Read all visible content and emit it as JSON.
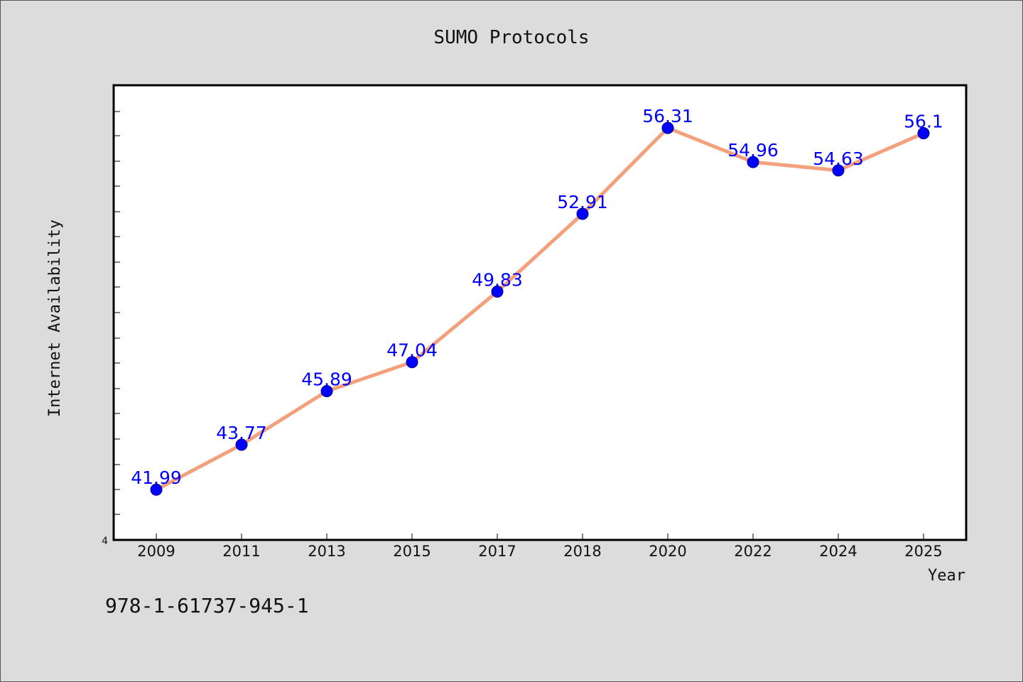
{
  "chart_data": {
    "type": "line",
    "title": "SUMO Protocols",
    "xlabel": "Year",
    "ylabel": "Internet Availability",
    "categories": [
      "2009",
      "2011",
      "2013",
      "2015",
      "2017",
      "2018",
      "2020",
      "2022",
      "2024",
      "2025"
    ],
    "series": [
      {
        "values": [
          41.99,
          43.77,
          45.89,
          47.04,
          49.83,
          52.91,
          56.31,
          54.96,
          54.63,
          56.1
        ],
        "labels": [
          "41.99",
          "43.77",
          "45.89",
          "47.04",
          "49.83",
          "52.91",
          "56.31",
          "54.96",
          "54.63",
          "56.1"
        ],
        "line_color": "#f4a07c",
        "marker_color": "#0000ff"
      }
    ],
    "y_tick_labels": [
      "4"
    ],
    "ylim": [
      40.0,
      58.0
    ],
    "grid": false,
    "legend": "none"
  },
  "footer": {
    "isbn": "978-1-61737-945-1"
  }
}
